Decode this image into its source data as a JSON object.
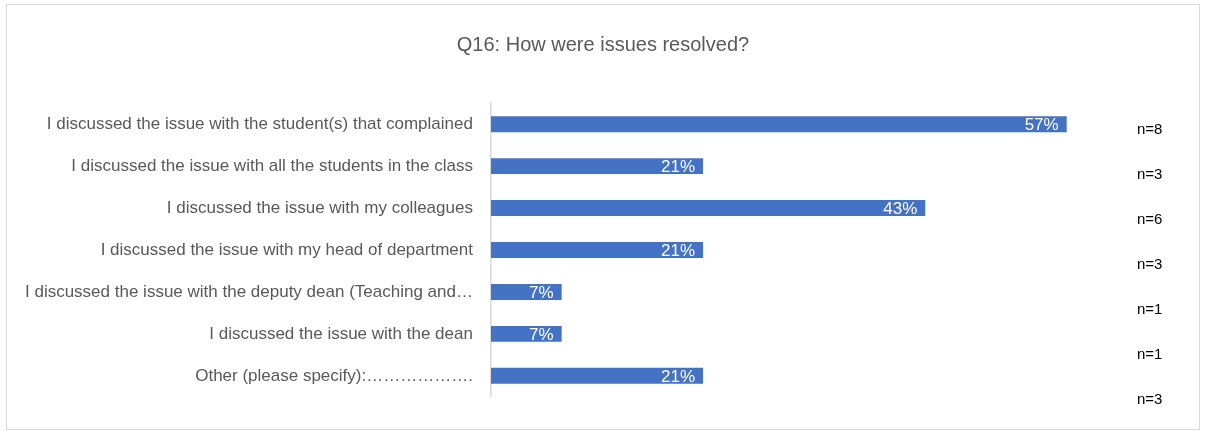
{
  "chart_data": {
    "type": "bar",
    "orientation": "horizontal",
    "title": "Q16: How were issues resolved?",
    "categories": [
      "I discussed the issue with the student(s) that complained",
      "I discussed the issue with all the students in the class",
      "I discussed the issue with my colleagues",
      "I discussed the issue with my head of department",
      "I discussed the issue with the deputy dean (Teaching and…",
      "I discussed the issue with the dean",
      "Other (please specify):………………."
    ],
    "values": [
      57,
      21,
      43,
      21,
      7,
      7,
      21
    ],
    "value_labels": [
      "57%",
      "21%",
      "43%",
      "21%",
      "7%",
      "7%",
      "21%"
    ],
    "color": "#4472c4",
    "annotations": [
      "n=8",
      "n=3",
      "n=6",
      "n=3",
      "n=1",
      "n=1",
      "n=3"
    ]
  }
}
